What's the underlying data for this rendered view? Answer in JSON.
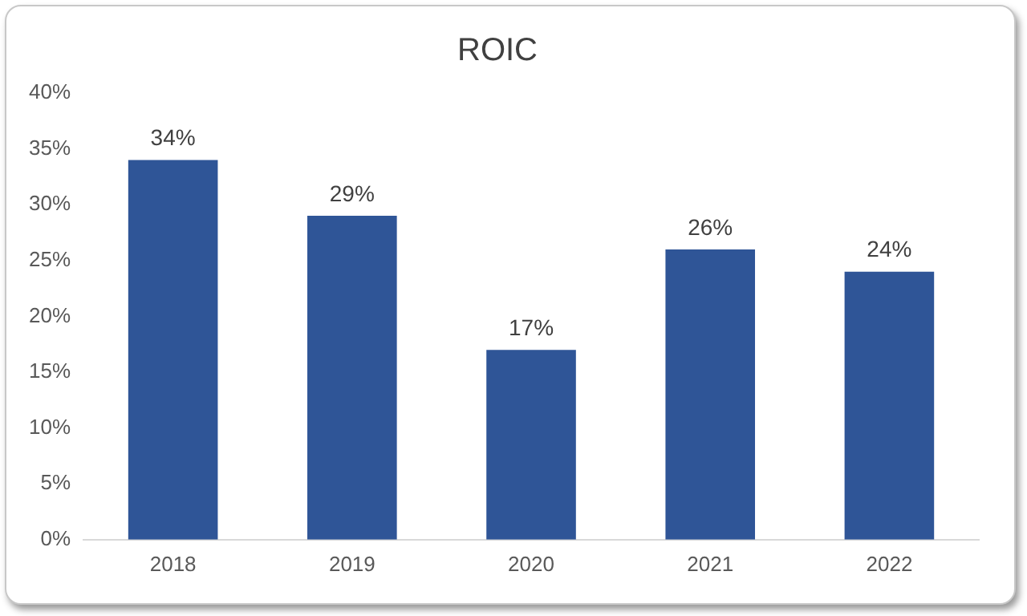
{
  "chart_data": {
    "type": "bar",
    "title": "ROIC",
    "categories": [
      "2018",
      "2019",
      "2020",
      "2021",
      "2022"
    ],
    "values": [
      34,
      29,
      17,
      26,
      24
    ],
    "color": "#2f5597",
    "ylim": [
      0,
      40
    ],
    "yticks": [
      {
        "value": 0,
        "label": "0%"
      },
      {
        "value": 5,
        "label": "5%"
      },
      {
        "value": 10,
        "label": "10%"
      },
      {
        "value": 15,
        "label": "15%"
      },
      {
        "value": 20,
        "label": "20%"
      },
      {
        "value": 25,
        "label": "25%"
      },
      {
        "value": 30,
        "label": "30%"
      },
      {
        "value": 35,
        "label": "35%"
      },
      {
        "value": 40,
        "label": "40%"
      }
    ],
    "value_labels": [
      "34%",
      "29%",
      "17%",
      "26%",
      "24%"
    ],
    "grid": false,
    "legend": false
  }
}
